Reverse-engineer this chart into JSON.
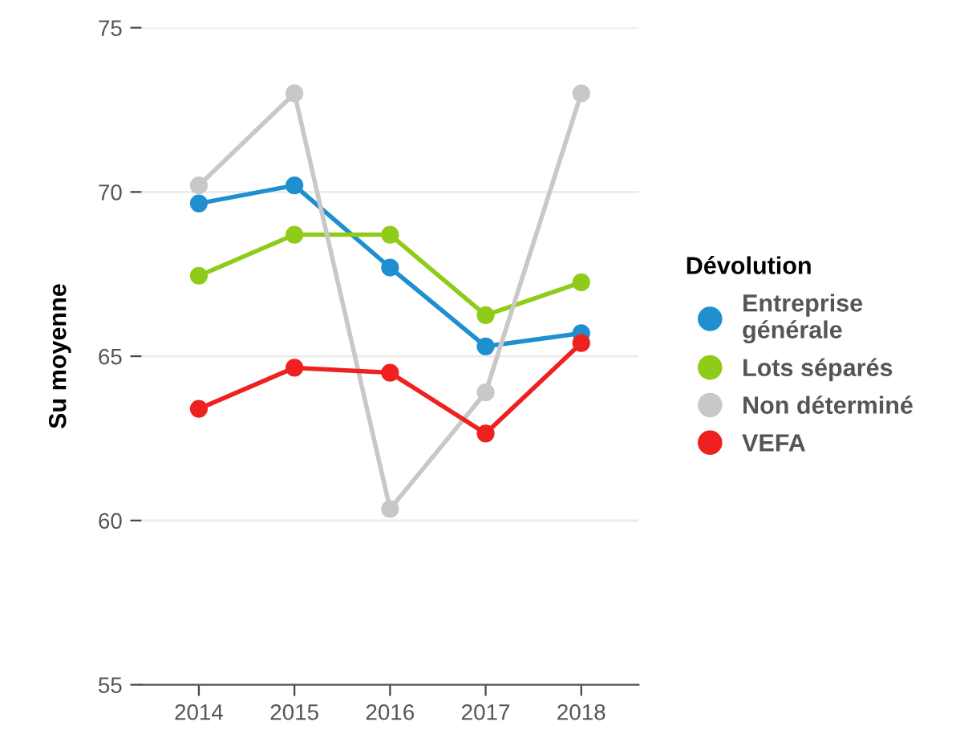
{
  "chart_data": {
    "type": "line",
    "ylabel": "Su moyenne",
    "legend_title": "Dévolution",
    "categories": [
      "2014",
      "2015",
      "2016",
      "2017",
      "2018"
    ],
    "series": [
      {
        "name": "Entreprise\ngénérale",
        "color": "#1f8fd0",
        "values": [
          69.65,
          70.2,
          67.7,
          65.3,
          65.7
        ]
      },
      {
        "name": "Lots séparés",
        "color": "#8fcc1a",
        "values": [
          67.45,
          68.7,
          68.7,
          66.25,
          67.25
        ]
      },
      {
        "name": "Non déterminé",
        "color": "#c8c8c8",
        "values": [
          70.2,
          73.0,
          60.35,
          63.9,
          73.0
        ]
      },
      {
        "name": "VEFA",
        "color": "#ee2020",
        "values": [
          63.4,
          64.65,
          64.5,
          62.65,
          65.4
        ]
      }
    ],
    "ylim": [
      55,
      75
    ],
    "yticks": [
      55,
      60,
      65,
      70,
      75
    ],
    "grid": "y",
    "legend": "right",
    "marker": "circle",
    "line_style": "solid"
  }
}
